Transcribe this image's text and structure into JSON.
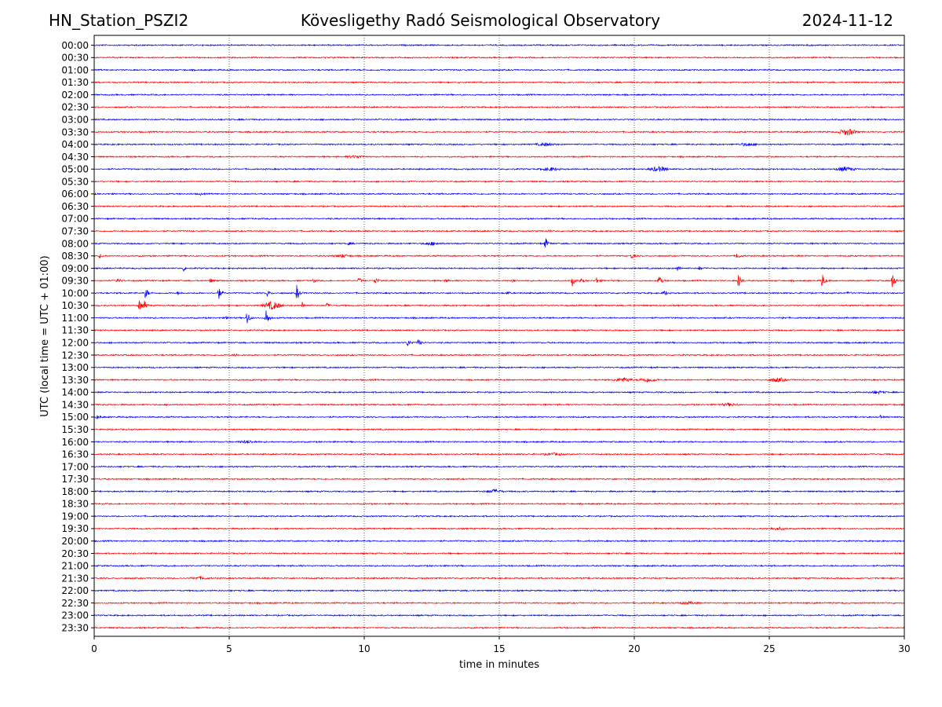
{
  "header": {
    "station": "HN_Station_PSZI2",
    "observatory": "Kövesligethy Radó Seismological Observatory",
    "date": "2024-11-12"
  },
  "chart_data": {
    "type": "line",
    "title": "Kövesligethy Radó Seismological Observatory",
    "xlabel": "time in minutes",
    "ylabel": "UTC (local time = UTC + 01:00)",
    "xlim": [
      0,
      30
    ],
    "x_ticks": [
      "0",
      "5",
      "10",
      "15",
      "20",
      "25",
      "30"
    ],
    "x_tick_values": [
      0,
      5,
      10,
      15,
      20,
      25,
      30
    ],
    "grid": "vertical dotted at 5-minute intervals",
    "row_labels": [
      "00:00",
      "00:30",
      "01:00",
      "01:30",
      "02:00",
      "02:30",
      "03:00",
      "03:30",
      "04:00",
      "04:30",
      "05:00",
      "05:30",
      "06:00",
      "06:30",
      "07:00",
      "07:30",
      "08:00",
      "08:30",
      "09:00",
      "09:30",
      "10:00",
      "10:30",
      "11:00",
      "11:30",
      "12:00",
      "12:30",
      "13:00",
      "13:30",
      "14:00",
      "14:30",
      "15:00",
      "15:30",
      "16:00",
      "16:30",
      "17:00",
      "17:30",
      "18:00",
      "18:30",
      "19:00",
      "19:30",
      "20:00",
      "20:30",
      "21:00",
      "21:30",
      "22:00",
      "22:30",
      "23:00",
      "23:30"
    ],
    "trace_colors": [
      "#0000ff",
      "#ff0000"
    ],
    "background_noise_amplitude": 1.0,
    "events": [
      {
        "row": "00:00",
        "minute": 26.4,
        "amp": 1.5
      },
      {
        "row": "03:30",
        "minute": 27.9,
        "amp": 4,
        "kind": "burst"
      },
      {
        "row": "04:00",
        "minute": 16.7,
        "amp": 1.8,
        "kind": "burst"
      },
      {
        "row": "04:00",
        "minute": 24.2,
        "amp": 1.8,
        "kind": "burst"
      },
      {
        "row": "04:30",
        "minute": 9.7,
        "amp": 1.5,
        "kind": "burst"
      },
      {
        "row": "05:00",
        "minute": 16.9,
        "amp": 2,
        "kind": "burst"
      },
      {
        "row": "05:00",
        "minute": 20.9,
        "amp": 3,
        "kind": "burst"
      },
      {
        "row": "05:00",
        "minute": 27.8,
        "amp": 2.5,
        "kind": "burst"
      },
      {
        "row": "06:00",
        "minute": 3.9,
        "amp": 1.5
      },
      {
        "row": "07:30",
        "minute": 16.8,
        "amp": 1.5
      },
      {
        "row": "08:00",
        "minute": 9.4,
        "amp": 2
      },
      {
        "row": "08:00",
        "minute": 12.5,
        "amp": 1.8,
        "kind": "burst"
      },
      {
        "row": "08:00",
        "minute": 16.7,
        "amp": 9
      },
      {
        "row": "08:30",
        "minute": 0.2,
        "amp": 3
      },
      {
        "row": "08:30",
        "minute": 9.2,
        "amp": 1.5,
        "kind": "burst"
      },
      {
        "row": "08:30",
        "minute": 19.9,
        "amp": 4
      },
      {
        "row": "08:30",
        "minute": 23.8,
        "amp": 5
      },
      {
        "row": "09:00",
        "minute": 3.3,
        "amp": 4
      },
      {
        "row": "09:00",
        "minute": 21.6,
        "amp": 4
      },
      {
        "row": "09:00",
        "minute": 22.4,
        "amp": 2.5
      },
      {
        "row": "09:30",
        "minute": 0.85,
        "amp": 4
      },
      {
        "row": "09:30",
        "minute": 4.3,
        "amp": 3
      },
      {
        "row": "09:30",
        "minute": 8.1,
        "amp": 3
      },
      {
        "row": "09:30",
        "minute": 9.8,
        "amp": 5
      },
      {
        "row": "09:30",
        "minute": 10.4,
        "amp": 6
      },
      {
        "row": "09:30",
        "minute": 13.0,
        "amp": 2
      },
      {
        "row": "09:30",
        "minute": 15.5,
        "amp": 2
      },
      {
        "row": "09:30",
        "minute": 17.7,
        "amp": 7
      },
      {
        "row": "09:30",
        "minute": 18.0,
        "amp": 3
      },
      {
        "row": "09:30",
        "minute": 18.6,
        "amp": 4
      },
      {
        "row": "09:30",
        "minute": 20.9,
        "amp": 10
      },
      {
        "row": "09:30",
        "minute": 23.85,
        "amp": 12
      },
      {
        "row": "09:30",
        "minute": 26.95,
        "amp": 12
      },
      {
        "row": "09:30",
        "minute": 29.55,
        "amp": 14
      },
      {
        "row": "10:00",
        "minute": 1.9,
        "amp": 8
      },
      {
        "row": "10:00",
        "minute": 3.1,
        "amp": 2
      },
      {
        "row": "10:00",
        "minute": 4.6,
        "amp": 9
      },
      {
        "row": "10:00",
        "minute": 6.4,
        "amp": 5
      },
      {
        "row": "10:00",
        "minute": 7.5,
        "amp": 10
      },
      {
        "row": "10:00",
        "minute": 15.3,
        "amp": 2
      },
      {
        "row": "10:00",
        "minute": 21.1,
        "amp": 5
      },
      {
        "row": "10:00",
        "minute": 27.9,
        "amp": 3
      },
      {
        "row": "10:30",
        "minute": 1.65,
        "amp": 10
      },
      {
        "row": "10:30",
        "minute": 1.85,
        "amp": 6
      },
      {
        "row": "10:30",
        "minute": 6.6,
        "amp": 5,
        "kind": "burst"
      },
      {
        "row": "10:30",
        "minute": 7.7,
        "amp": 4
      },
      {
        "row": "10:30",
        "minute": 8.6,
        "amp": 3
      },
      {
        "row": "11:00",
        "minute": 4.9,
        "amp": 2
      },
      {
        "row": "11:00",
        "minute": 5.65,
        "amp": 11
      },
      {
        "row": "11:00",
        "minute": 6.35,
        "amp": 14
      },
      {
        "row": "11:00",
        "minute": 25.5,
        "amp": 1.5
      },
      {
        "row": "12:00",
        "minute": 11.6,
        "amp": 5
      },
      {
        "row": "12:00",
        "minute": 12.0,
        "amp": 5
      },
      {
        "row": "12:30",
        "minute": 5.2,
        "amp": 2
      },
      {
        "row": "13:30",
        "minute": 19.6,
        "amp": 2.5,
        "kind": "burst"
      },
      {
        "row": "13:30",
        "minute": 20.5,
        "amp": 2.5,
        "kind": "burst"
      },
      {
        "row": "13:30",
        "minute": 25.3,
        "amp": 2.5,
        "kind": "burst"
      },
      {
        "row": "14:00",
        "minute": 29.0,
        "amp": 1.5,
        "kind": "burst"
      },
      {
        "row": "14:30",
        "minute": 23.5,
        "amp": 1.5,
        "kind": "burst"
      },
      {
        "row": "15:00",
        "minute": 0.1,
        "amp": 3
      },
      {
        "row": "15:00",
        "minute": 29.1,
        "amp": 2
      },
      {
        "row": "16:00",
        "minute": 5.7,
        "amp": 1.5,
        "kind": "burst"
      },
      {
        "row": "16:30",
        "minute": 17.0,
        "amp": 1.5,
        "kind": "burst"
      },
      {
        "row": "18:00",
        "minute": 14.8,
        "amp": 2,
        "kind": "burst"
      },
      {
        "row": "19:30",
        "minute": 25.3,
        "amp": 1.5,
        "kind": "burst"
      },
      {
        "row": "21:30",
        "minute": 3.9,
        "amp": 1.5,
        "kind": "burst"
      },
      {
        "row": "22:30",
        "minute": 22.0,
        "amp": 1.3,
        "kind": "burst"
      }
    ]
  }
}
